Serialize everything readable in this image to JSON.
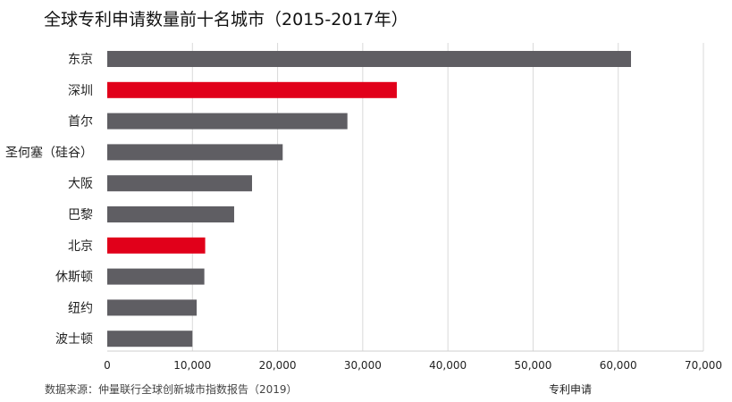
{
  "colors": {
    "default_bar": "#5f5e63",
    "highlight_bar": "#e1001a",
    "grid": "#d9d9d9"
  },
  "chart_data": {
    "type": "bar",
    "orientation": "horizontal",
    "title": "全球专利申请数量前十名城市（2015-2017年）",
    "xlabel": "专利申请",
    "ylabel": "",
    "categories": [
      "东京",
      "深圳",
      "首尔",
      "圣何塞（硅谷）",
      "大阪",
      "巴黎",
      "北京",
      "休斯顿",
      "纽约",
      "波士顿"
    ],
    "values": [
      61500,
      34000,
      28200,
      20600,
      17000,
      14900,
      11500,
      11400,
      10500,
      10000
    ],
    "highlight": [
      false,
      true,
      false,
      false,
      false,
      false,
      true,
      false,
      false,
      false
    ],
    "xlim": [
      0,
      70000
    ],
    "xticks": [
      0,
      10000,
      20000,
      30000,
      40000,
      50000,
      60000,
      70000
    ],
    "xtick_labels": [
      "0",
      "10,000",
      "20,000",
      "30,000",
      "40,000",
      "50,000",
      "60,000",
      "70,000"
    ],
    "grid": "vertical",
    "source": "数据来源：仲量联行全球创新城市指数报告（2019）"
  }
}
